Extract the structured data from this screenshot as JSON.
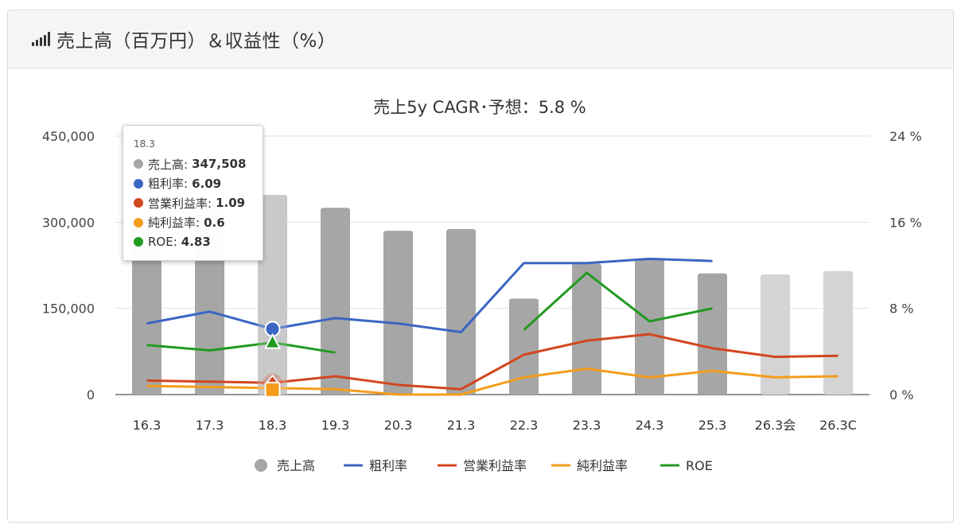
{
  "header": {
    "title": "売上高（百万円）＆収益性（%）",
    "icon": "signal-bars-icon"
  },
  "tooltip": {
    "category": "18.3",
    "rows": [
      {
        "label": "売上高:",
        "value": "347,508",
        "color": "#a6a6a6"
      },
      {
        "label": "粗利率:",
        "value": "6.09",
        "color": "#3a66c4"
      },
      {
        "label": "営業利益率:",
        "value": "1.09",
        "color": "#d2461f"
      },
      {
        "label": "純利益率:",
        "value": "0.6",
        "color": "#f59d1a"
      },
      {
        "label": "ROE:",
        "value": "4.83",
        "color": "#229922"
      }
    ]
  },
  "chart_data": {
    "type": "bar",
    "title": "売上5y CAGR･予想：5.8 %",
    "categories": [
      "16.3",
      "17.3",
      "18.3",
      "19.3",
      "20.3",
      "21.3",
      "22.3",
      "23.3",
      "24.3",
      "25.3",
      "26.3会",
      "26.3C"
    ],
    "left_axis": {
      "ylim": [
        0,
        450000
      ],
      "ticks": [
        "0",
        "150,000",
        "300,000",
        "450,000"
      ],
      "tick_values": [
        0,
        150000,
        300000,
        450000
      ]
    },
    "right_axis": {
      "ylim": [
        0,
        24
      ],
      "ticks": [
        "0 %",
        "8 %",
        "16 %",
        "24 %"
      ],
      "tick_values": [
        0,
        8,
        16,
        24
      ]
    },
    "bars": {
      "name": "売上高",
      "values": [
        310000,
        330000,
        347508,
        325000,
        285000,
        288000,
        167000,
        228000,
        237000,
        211000,
        209000,
        215000
      ],
      "colors": [
        "#a6a6a6",
        "#a6a6a6",
        "#bcbcbc",
        "#a6a6a6",
        "#a6a6a6",
        "#a6a6a6",
        "#a6a6a6",
        "#a6a6a6",
        "#a6a6a6",
        "#a6a6a6",
        "#d4d4d4",
        "#d4d4d4"
      ]
    },
    "series": [
      {
        "name": "粗利率",
        "color": "#3a66c4",
        "values": [
          6.6,
          7.7,
          6.09,
          7.1,
          6.6,
          5.8,
          12.2,
          12.2,
          12.6,
          12.4,
          null,
          null
        ]
      },
      {
        "name": "営業利益率",
        "color": "#d2461f",
        "values": [
          1.3,
          1.2,
          1.09,
          1.7,
          0.9,
          0.5,
          3.7,
          5.0,
          5.6,
          4.3,
          3.5,
          3.6
        ]
      },
      {
        "name": "純利益率",
        "color": "#f59d1a",
        "values": [
          0.8,
          0.7,
          0.6,
          0.5,
          -0.1,
          -0.4,
          1.6,
          2.4,
          1.6,
          2.2,
          1.6,
          1.7
        ]
      },
      {
        "name": "ROE",
        "color": "#229922",
        "values": [
          4.6,
          4.1,
          4.83,
          3.9,
          null,
          null,
          6.0,
          11.3,
          6.8,
          8.0,
          null,
          null
        ]
      }
    ],
    "legend": {
      "position": "bottom"
    },
    "grid": true,
    "highlight_index": 2
  }
}
